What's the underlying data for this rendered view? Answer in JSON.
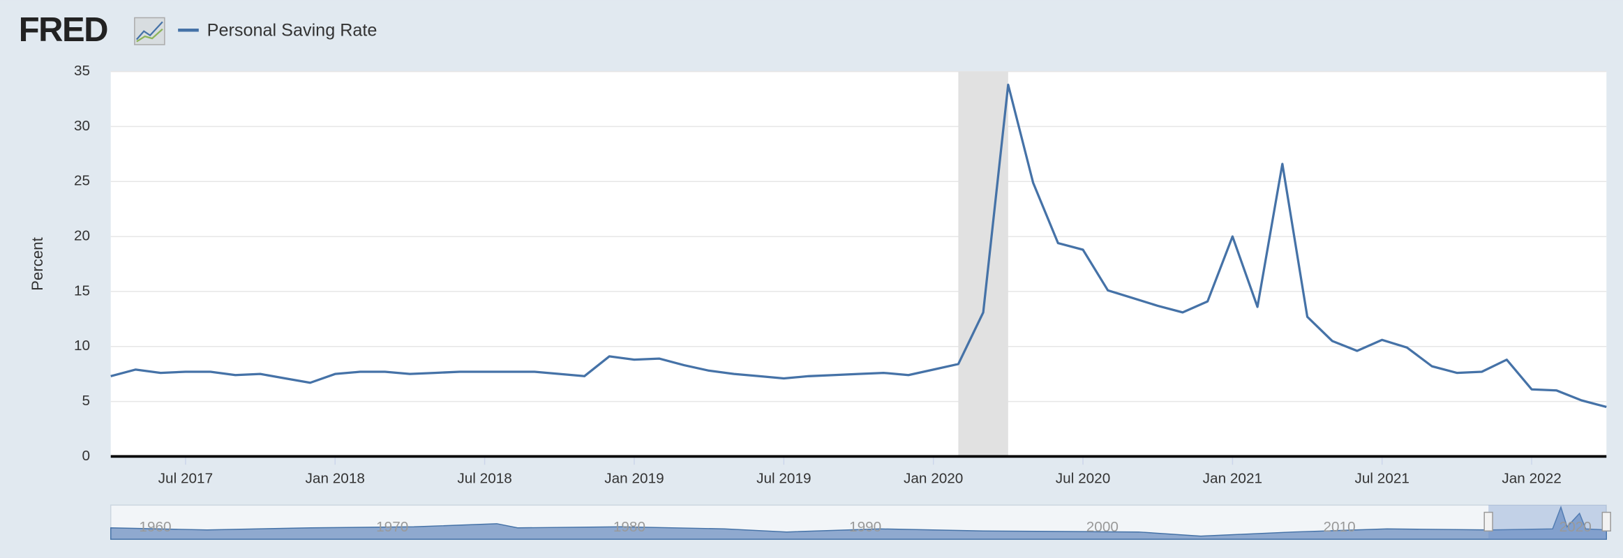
{
  "logo": "FRED",
  "chart_data": {
    "type": "line",
    "y_label": "Percent",
    "x": [
      "2017-04",
      "2017-05",
      "2017-06",
      "2017-07",
      "2017-08",
      "2017-09",
      "2017-10",
      "2017-11",
      "2017-12",
      "2018-01",
      "2018-02",
      "2018-03",
      "2018-04",
      "2018-05",
      "2018-06",
      "2018-07",
      "2018-08",
      "2018-09",
      "2018-10",
      "2018-11",
      "2018-12",
      "2019-01",
      "2019-02",
      "2019-03",
      "2019-04",
      "2019-05",
      "2019-06",
      "2019-07",
      "2019-08",
      "2019-09",
      "2019-10",
      "2019-11",
      "2019-12",
      "2020-01",
      "2020-02",
      "2020-03",
      "2020-04",
      "2020-05",
      "2020-06",
      "2020-07",
      "2020-08",
      "2020-09",
      "2020-10",
      "2020-11",
      "2020-12",
      "2021-01",
      "2021-02",
      "2021-03",
      "2021-04",
      "2021-05",
      "2021-06",
      "2021-07",
      "2021-08",
      "2021-09",
      "2021-10",
      "2021-11",
      "2021-12",
      "2022-01",
      "2022-02",
      "2022-03",
      "2022-04"
    ],
    "series": [
      {
        "name": "Personal Saving Rate",
        "color": "#4572a7",
        "values": [
          7.3,
          7.9,
          7.6,
          7.7,
          7.7,
          7.4,
          7.5,
          7.1,
          6.7,
          7.5,
          7.7,
          7.7,
          7.5,
          7.6,
          7.7,
          7.7,
          7.7,
          7.7,
          7.5,
          7.3,
          9.1,
          8.8,
          8.9,
          8.3,
          7.8,
          7.5,
          7.3,
          7.1,
          7.3,
          7.4,
          7.5,
          7.6,
          7.4,
          7.9,
          8.4,
          13.1,
          33.8,
          24.9,
          19.4,
          18.8,
          15.1,
          14.4,
          13.7,
          13.1,
          14.1,
          20.0,
          13.6,
          26.6,
          12.7,
          10.5,
          9.6,
          10.6,
          9.9,
          8.2,
          7.6,
          7.7,
          8.8,
          6.1,
          6.0,
          5.1,
          4.5
        ]
      }
    ],
    "xlim": [
      "2017-04",
      "2022-04"
    ],
    "xticks": [
      {
        "value": "2017-07",
        "label": "Jul 2017"
      },
      {
        "value": "2018-01",
        "label": "Jan 2018"
      },
      {
        "value": "2018-07",
        "label": "Jul 2018"
      },
      {
        "value": "2019-01",
        "label": "Jan 2019"
      },
      {
        "value": "2019-07",
        "label": "Jul 2019"
      },
      {
        "value": "2020-01",
        "label": "Jan 2020"
      },
      {
        "value": "2020-07",
        "label": "Jul 2020"
      },
      {
        "value": "2021-01",
        "label": "Jan 2021"
      },
      {
        "value": "2021-07",
        "label": "Jul 2021"
      },
      {
        "value": "2022-01",
        "label": "Jan 2022"
      }
    ],
    "ylim": [
      0,
      35
    ],
    "yticks": [
      0,
      5,
      10,
      15,
      20,
      25,
      30,
      35
    ],
    "grid": true,
    "recessions": [
      [
        "2020-02",
        "2020-04"
      ]
    ],
    "recession_color": "#e1e1e1"
  },
  "navigator": {
    "labels": [
      "1960",
      "1970",
      "1980",
      "1990",
      "2000",
      "2010",
      "2020"
    ]
  }
}
